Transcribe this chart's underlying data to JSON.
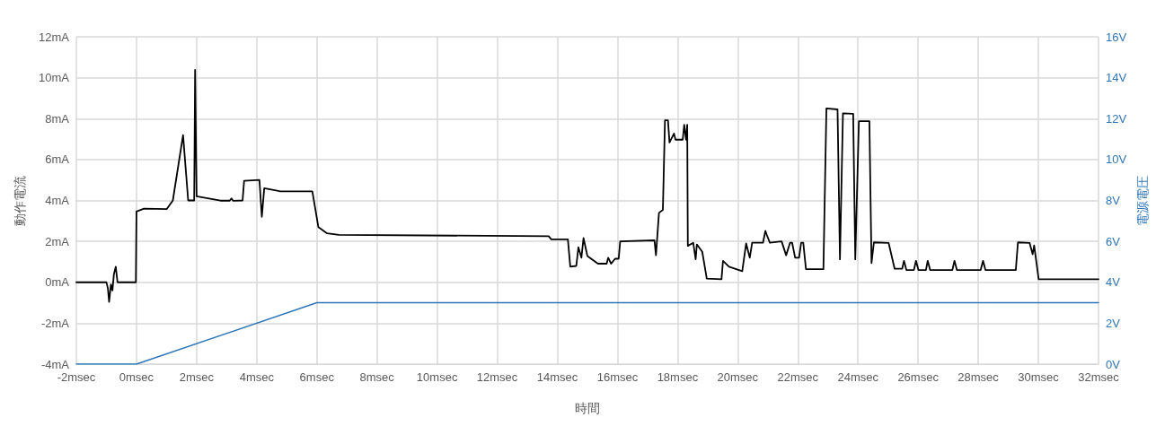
{
  "chart_data": {
    "type": "line",
    "xlabel": "時間",
    "ylabel": "動作電流",
    "y2label": "電源電圧",
    "series": [
      {
        "color": "#000000",
        "x": [
          -2,
          -1.0,
          -0.95,
          -0.91,
          -0.85,
          -0.8,
          -0.75,
          -0.69,
          -0.63,
          -0.55,
          -0.02,
          0.0,
          0.25,
          1.01,
          1.21,
          1.55,
          1.72,
          1.92,
          1.95,
          2.0,
          2.79,
          3.1,
          3.16,
          3.22,
          3.53,
          3.58,
          4.09,
          4.17,
          4.25,
          4.76,
          5.85,
          6.05,
          6.34,
          6.73,
          13.71,
          13.8,
          14.35,
          14.43,
          14.63,
          14.7,
          14.8,
          14.87,
          15.0,
          15.35,
          15.64,
          15.69,
          15.79,
          15.92,
          16.04,
          16.09,
          17.23,
          17.28,
          17.38,
          17.51,
          17.58,
          17.68,
          17.73,
          17.88,
          17.93,
          18.17,
          18.22,
          18.28,
          18.32,
          18.34,
          18.52,
          18.6,
          18.64,
          18.82,
          18.97,
          19.46,
          19.51,
          19.71,
          20.15,
          20.28,
          20.4,
          20.48,
          20.84,
          20.92,
          20.97,
          21.07,
          21.46,
          21.61,
          21.74,
          21.81,
          21.91,
          22.04,
          22.11,
          22.18,
          22.27,
          22.85,
          22.95,
          23.32,
          23.4,
          23.5,
          23.84,
          23.91,
          24.03,
          24.38,
          24.45,
          24.53,
          25.02,
          25.22,
          25.47,
          25.53,
          25.61,
          25.86,
          25.93,
          26.01,
          26.26,
          26.32,
          26.4,
          27.14,
          27.21,
          27.29,
          28.08,
          28.16,
          28.24,
          29.25,
          29.32,
          29.71,
          29.81,
          29.86,
          30.01,
          32
        ],
        "values": [
          0,
          0,
          -0.3,
          -0.96,
          -0.1,
          -0.4,
          0.4,
          0.76,
          0.0,
          0,
          0,
          3.46,
          3.6,
          3.58,
          4.0,
          7.19,
          4.0,
          4.0,
          10.38,
          4.2,
          3.99,
          3.99,
          4.1,
          3.98,
          4.0,
          4.96,
          5.0,
          3.2,
          4.6,
          4.45,
          4.44,
          2.7,
          2.39,
          2.32,
          2.25,
          2.1,
          2.1,
          0.76,
          0.8,
          1.71,
          1.2,
          2.16,
          1.28,
          0.91,
          0.91,
          1.2,
          0.91,
          1.15,
          1.15,
          2.0,
          2.05,
          1.32,
          3.39,
          3.54,
          7.92,
          7.92,
          6.83,
          7.27,
          6.97,
          6.97,
          7.7,
          6.97,
          7.7,
          1.78,
          1.93,
          1.12,
          1.85,
          1.49,
          0.18,
          0.15,
          1.05,
          0.76,
          0.54,
          1.9,
          1.2,
          1.93,
          1.93,
          2.51,
          2.3,
          1.93,
          2.0,
          1.32,
          1.93,
          1.93,
          1.2,
          1.2,
          1.93,
          1.93,
          0.64,
          0.64,
          8.5,
          8.45,
          1.12,
          8.26,
          8.24,
          1.12,
          7.87,
          7.87,
          0.94,
          1.95,
          1.92,
          0.66,
          0.66,
          1.05,
          0.6,
          0.6,
          1.05,
          0.6,
          0.6,
          1.05,
          0.6,
          0.6,
          1.05,
          0.6,
          0.6,
          1.05,
          0.6,
          0.6,
          1.95,
          1.92,
          1.37,
          1.8,
          0.15,
          0.15
        ]
      },
      {
        "color": "#2e75b6",
        "axis": "y2",
        "x": [
          -2,
          0,
          6,
          32
        ],
        "values": [
          0,
          0,
          3,
          3
        ]
      }
    ],
    "xlim": [
      -2,
      32
    ],
    "xticks": [
      {
        "value": -2,
        "label": "-2msec"
      },
      {
        "value": 0,
        "label": "0msec"
      },
      {
        "value": 2,
        "label": "2msec"
      },
      {
        "value": 4,
        "label": "4msec"
      },
      {
        "value": 6,
        "label": "6msec"
      },
      {
        "value": 8,
        "label": "8msec"
      },
      {
        "value": 10,
        "label": "10msec"
      },
      {
        "value": 12,
        "label": "12msec"
      },
      {
        "value": 14,
        "label": "14msec"
      },
      {
        "value": 16,
        "label": "16msec"
      },
      {
        "value": 18,
        "label": "18msec"
      },
      {
        "value": 20,
        "label": "20msec"
      },
      {
        "value": 22,
        "label": "22msec"
      },
      {
        "value": 24,
        "label": "24msec"
      },
      {
        "value": 26,
        "label": "26msec"
      },
      {
        "value": 28,
        "label": "28msec"
      },
      {
        "value": 30,
        "label": "30msec"
      },
      {
        "value": 32,
        "label": "32msec"
      }
    ],
    "ylim": [
      -4,
      12
    ],
    "yticks": [
      {
        "value": -4,
        "label": "-4mA"
      },
      {
        "value": -2,
        "label": "-2mA"
      },
      {
        "value": 0,
        "label": "0mA"
      },
      {
        "value": 2,
        "label": "2mA"
      },
      {
        "value": 4,
        "label": "4mA"
      },
      {
        "value": 6,
        "label": "6mA"
      },
      {
        "value": 8,
        "label": "8mA"
      },
      {
        "value": 10,
        "label": "10mA"
      },
      {
        "value": 12,
        "label": "12mA"
      }
    ],
    "y2lim": [
      0,
      16
    ],
    "y2ticks": [
      {
        "value": 0,
        "label": "0V"
      },
      {
        "value": 2,
        "label": "2V"
      },
      {
        "value": 4,
        "label": "4V"
      },
      {
        "value": 6,
        "label": "6V"
      },
      {
        "value": 8,
        "label": "8V"
      },
      {
        "value": 10,
        "label": "10V"
      },
      {
        "value": 12,
        "label": "12V"
      },
      {
        "value": 14,
        "label": "14V"
      },
      {
        "value": 16,
        "label": "16V"
      }
    ],
    "grid": true,
    "marker": "none",
    "line_style": "solid"
  }
}
